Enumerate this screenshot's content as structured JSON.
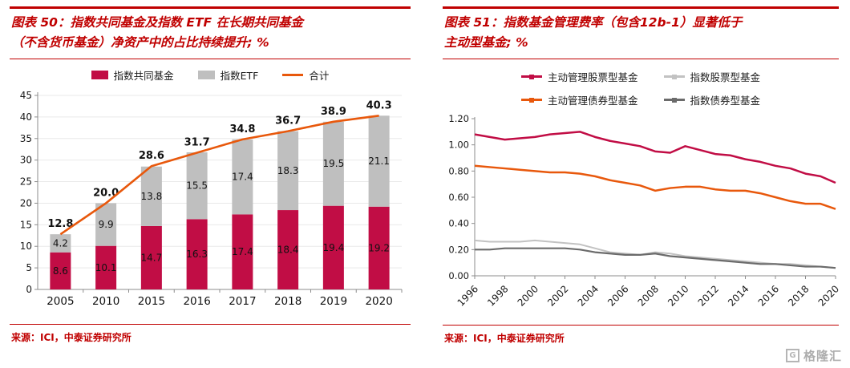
{
  "panels": [
    {
      "title_line1": "图表 50：指数共同基金及指数 ETF 在长期共同基金",
      "title_line2": "（不含货币基金）净资产中的占比持续提升; %",
      "source": "来源：ICI，中泰证券研究所"
    },
    {
      "title_line1": "图表 51：指数基金管理费率（包含12b-1）显著低于",
      "title_line2": "主动型基金; %",
      "source": "来源：ICI，中泰证券研究所"
    }
  ],
  "watermark": {
    "icon": "G",
    "text": "格隆汇"
  },
  "colors": {
    "title_red": "#c00000",
    "crimson": "#c10d45",
    "orange": "#e8580c",
    "bar_gray": "#bfbfbf",
    "light_gray_line": "#c2c2c2",
    "dark_gray_line": "#6b6b6b"
  },
  "chart_data": [
    {
      "type": "bar",
      "subtype": "stacked-bars-with-total-line",
      "categories": [
        "2005",
        "2010",
        "2015",
        "2016",
        "2017",
        "2018",
        "2019",
        "2020"
      ],
      "series": [
        {
          "name": "指数共同基金",
          "color": "#c10d45",
          "values": [
            8.6,
            10.1,
            14.7,
            16.3,
            17.4,
            18.4,
            19.4,
            19.2
          ]
        },
        {
          "name": "指数ETF",
          "color": "#bfbfbf",
          "values": [
            4.2,
            9.9,
            13.8,
            15.5,
            17.4,
            18.3,
            19.5,
            21.1
          ]
        }
      ],
      "line_series": {
        "name": "合计",
        "color": "#e8580c",
        "values": [
          12.8,
          20.0,
          28.6,
          31.7,
          34.8,
          36.7,
          38.9,
          40.3
        ]
      },
      "ylim": [
        0,
        45
      ],
      "ytick_step": 5,
      "ytick_labels": [
        "0",
        "5",
        "10",
        "15",
        "20",
        "25",
        "30",
        "35",
        "40",
        "45"
      ],
      "grid": true,
      "legend_position": "top"
    },
    {
      "type": "line",
      "x": [
        1996,
        1997,
        1998,
        1999,
        2000,
        2001,
        2002,
        2003,
        2004,
        2005,
        2006,
        2007,
        2008,
        2009,
        2010,
        2011,
        2012,
        2013,
        2014,
        2015,
        2016,
        2017,
        2018,
        2019,
        2020
      ],
      "xtick_labels": [
        "1996",
        "1998",
        "2000",
        "2002",
        "2004",
        "2006",
        "2008",
        "2010",
        "2012",
        "2014",
        "2016",
        "2018",
        "2020"
      ],
      "series": [
        {
          "name": "主动管理股票型基金",
          "color": "#c10d45",
          "values": [
            1.08,
            1.06,
            1.04,
            1.05,
            1.06,
            1.08,
            1.09,
            1.1,
            1.06,
            1.03,
            1.01,
            0.99,
            0.95,
            0.94,
            0.99,
            0.96,
            0.93,
            0.92,
            0.89,
            0.87,
            0.84,
            0.82,
            0.78,
            0.76,
            0.71
          ]
        },
        {
          "name": "指数股票型基金",
          "color": "#c2c2c2",
          "values": [
            0.27,
            0.26,
            0.26,
            0.26,
            0.27,
            0.26,
            0.25,
            0.24,
            0.21,
            0.18,
            0.17,
            0.16,
            0.18,
            0.17,
            0.15,
            0.14,
            0.13,
            0.12,
            0.11,
            0.1,
            0.09,
            0.09,
            0.08,
            0.07,
            0.06
          ]
        },
        {
          "name": "主动管理债券型基金",
          "color": "#e8580c",
          "values": [
            0.84,
            0.83,
            0.82,
            0.81,
            0.8,
            0.79,
            0.79,
            0.78,
            0.76,
            0.73,
            0.71,
            0.69,
            0.65,
            0.67,
            0.68,
            0.68,
            0.66,
            0.65,
            0.65,
            0.63,
            0.6,
            0.57,
            0.55,
            0.55,
            0.51
          ]
        },
        {
          "name": "指数债券型基金",
          "color": "#6b6b6b",
          "values": [
            0.2,
            0.2,
            0.21,
            0.21,
            0.21,
            0.21,
            0.21,
            0.2,
            0.18,
            0.17,
            0.16,
            0.16,
            0.17,
            0.15,
            0.14,
            0.13,
            0.12,
            0.11,
            0.1,
            0.09,
            0.09,
            0.08,
            0.07,
            0.07,
            0.06
          ]
        }
      ],
      "ylim": [
        0,
        1.2
      ],
      "ytick_step": 0.2,
      "ytick_labels": [
        "0.00",
        "0.20",
        "0.40",
        "0.60",
        "0.80",
        "1.00",
        "1.20"
      ],
      "grid": false,
      "legend_position": "top"
    }
  ]
}
